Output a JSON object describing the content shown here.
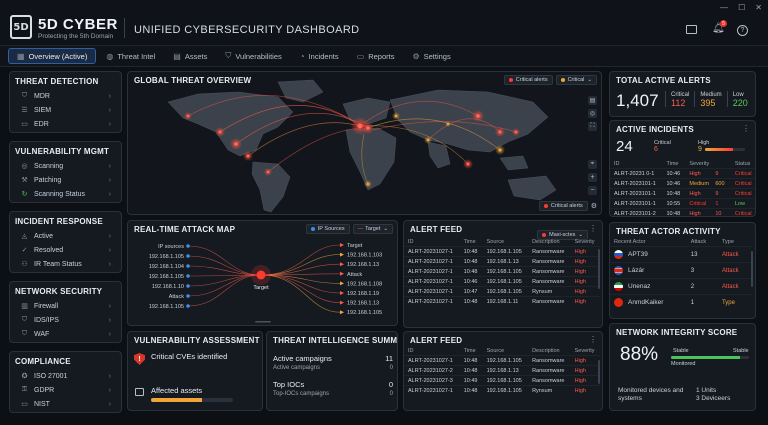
{
  "brand": {
    "name": "5D CYBER",
    "tagline": "Protecting the 5th Domain",
    "logo_letters": "5D"
  },
  "app_title": "UNIFIED CYBERSECURITY DASHBOARD",
  "window": {
    "notification_count": "5"
  },
  "tabs": [
    {
      "label": "Overview (Active)",
      "icon": "grid-icon",
      "active": true
    },
    {
      "label": "Threat Intel",
      "icon": "globe-icon"
    },
    {
      "label": "Assets",
      "icon": "server-icon"
    },
    {
      "label": "Vulnerabilities",
      "icon": "shield-icon"
    },
    {
      "label": "Incidents",
      "icon": "bell-icon"
    },
    {
      "label": "Reports",
      "icon": "document-icon"
    },
    {
      "label": "Settings",
      "icon": "gear-icon"
    }
  ],
  "sidebar": [
    {
      "title": "THREAT DETECTION",
      "items": [
        {
          "label": "MDR",
          "icon": "shield-icon"
        },
        {
          "label": "SIEM",
          "icon": "database-icon"
        },
        {
          "label": "EDR",
          "icon": "monitor-icon"
        }
      ]
    },
    {
      "title": "VULNERABILITY MGMT",
      "items": [
        {
          "label": "Scanning",
          "icon": "radar-icon"
        },
        {
          "label": "Patching",
          "icon": "wrench-icon"
        },
        {
          "label": "Scanning Status",
          "icon": "refresh-icon"
        }
      ]
    },
    {
      "title": "INCIDENT RESPONSE",
      "items": [
        {
          "label": "Active",
          "icon": "alert-icon"
        },
        {
          "label": "Resolved",
          "icon": "check-icon"
        },
        {
          "label": "IR Team Status",
          "icon": "team-icon"
        }
      ]
    },
    {
      "title": "NETWORK SECURITY",
      "items": [
        {
          "label": "Firewall",
          "icon": "firewall-icon"
        },
        {
          "label": "IDS/IPS",
          "icon": "shield-icon"
        },
        {
          "label": "WAF",
          "icon": "shield-icon"
        }
      ]
    },
    {
      "title": "COMPLIANCE",
      "items": [
        {
          "label": "ISO 27001",
          "icon": "badge-icon"
        },
        {
          "label": "GDPR",
          "icon": "lock-icon"
        },
        {
          "label": "NIST",
          "icon": "document-icon"
        }
      ]
    }
  ],
  "global_map": {
    "title": "GLOBAL THREAT OVERVIEW",
    "legend": [
      {
        "label": "Critical alerts",
        "color": "#ff3b30"
      },
      {
        "label": "Critical",
        "color": "#f0a53a"
      }
    ],
    "bottom_legend": "Critical alerts"
  },
  "total_alerts": {
    "title": "TOTAL ACTIVE ALERTS",
    "total": "1,407",
    "breakdown": [
      {
        "label": "Critical",
        "value": "112",
        "color": "#ff5a4a"
      },
      {
        "label": "Medium",
        "value": "395",
        "color": "#f0a53a"
      },
      {
        "label": "Low",
        "value": "220",
        "color": "#5ac85a"
      }
    ]
  },
  "active_incidents": {
    "title": "ACTIVE INCIDENTS",
    "count": "24",
    "critical_label": "Critical",
    "critical_value": "6",
    "high_label": "High",
    "high_value": "9",
    "high_level": 0.7,
    "columns": [
      "ID",
      "Time",
      "Severity",
      "Status"
    ],
    "rows": [
      {
        "id": "ALRT-20231 0-1",
        "time": "10:46",
        "severity": "High",
        "sev_num": "9",
        "status": "Critical"
      },
      {
        "id": "ALRT-2023101-1",
        "time": "10:46",
        "severity": "Medium",
        "sev_num": "600",
        "status": "Critical"
      },
      {
        "id": "ALRT-2023101-1",
        "time": "10:48",
        "severity": "High",
        "sev_num": "9",
        "status": "Critical"
      },
      {
        "id": "ALRT-2023101-1",
        "time": "10:55",
        "severity": "Critical",
        "sev_num": "1",
        "status": "Low"
      },
      {
        "id": "ALRT-2023101-2",
        "time": "10:48",
        "severity": "High",
        "sev_num": "10",
        "status": "Critical"
      }
    ]
  },
  "attack_map": {
    "title": "REAL-TIME ATTACK MAP",
    "legend_sources": "IP Sources",
    "legend_target": "Target",
    "center_label": "Target",
    "sources": [
      "IP sources",
      "192.168.1.105",
      "192.168.1.104",
      "192.168.1.105",
      "192.168.1.10",
      "Attack",
      "192.168.1.105"
    ],
    "targets": [
      "Target",
      "192.168.1.103",
      "192.168.1.13",
      "Attack",
      "192.168.1.108",
      "192.168.1.19",
      "192.168.1.13",
      "192.168.1.105"
    ]
  },
  "alert_feed_1": {
    "title": "ALERT FEED",
    "filter": "Maxi-sctes",
    "columns": [
      "ID",
      "Time",
      "Source",
      "Description",
      "Severity"
    ],
    "rows": [
      {
        "id": "ALRT-20231027-1",
        "time": "10:48",
        "source": "192.168.1.105",
        "desc": "Ransomware",
        "sev": "High"
      },
      {
        "id": "ALRT-20231027-1",
        "time": "10:48",
        "source": "192.168.1.13",
        "desc": "Ransomware",
        "sev": "High"
      },
      {
        "id": "ALRT-20231027-1",
        "time": "10:48",
        "source": "192.168.1.105",
        "desc": "Ransomware",
        "sev": "High"
      },
      {
        "id": "ALRT-20231027-1",
        "time": "10:46",
        "source": "192.168.1.105",
        "desc": "Ransomware",
        "sev": "High"
      },
      {
        "id": "ALRT-20231027-1",
        "time": "10:47",
        "source": "192.168.1.105",
        "desc": "Rynsum",
        "sev": "High"
      },
      {
        "id": "ALRT-20231027-1",
        "time": "10:48",
        "source": "192.168.1.11",
        "desc": "Ransomware",
        "sev": "High"
      }
    ]
  },
  "alert_feed_2": {
    "title": "ALERT FEED",
    "columns": [
      "ID",
      "Time",
      "Source",
      "Description",
      "Severity"
    ],
    "rows": [
      {
        "id": "ALRT-20231027-1",
        "time": "10:48",
        "source": "192.168.1.105",
        "desc": "Ransomware",
        "sev": "High"
      },
      {
        "id": "ALRT-20231027-2",
        "time": "10:48",
        "source": "192.168.1.13",
        "desc": "Ransomware",
        "sev": "High"
      },
      {
        "id": "ALRT-20231027-3",
        "time": "10:49",
        "source": "192.168.1.105",
        "desc": "Ransomware",
        "sev": "High"
      },
      {
        "id": "ALRT-20231027-1",
        "time": "10:48",
        "source": "192.168.1.105",
        "desc": "Rynsum",
        "sev": "High"
      }
    ]
  },
  "threat_actors": {
    "title": "THREAT ACTOR ACTIVITY",
    "columns": [
      "Recent Actor",
      "Attack",
      "Type"
    ],
    "rows": [
      {
        "name": "APT39",
        "count": "13",
        "type": "Attack",
        "type_color": "#ff5a4a",
        "flag": "ru"
      },
      {
        "name": "Lázár",
        "count": "3",
        "type": "Attack",
        "type_color": "#ff5a4a",
        "flag": "kp"
      },
      {
        "name": "Unenaz",
        "count": "2",
        "type": "Attack",
        "type_color": "#ff5a4a",
        "flag": "ir"
      },
      {
        "name": "AnmdKaiker",
        "count": "1",
        "type": "Type",
        "type_color": "#f0a53a",
        "flag": "cn"
      }
    ]
  },
  "vuln_assessment": {
    "title": "VULNERABILITY ASSESSMENT",
    "cves_label": "Critical CVEs identified",
    "assets_label": "Affected assets",
    "assets_level": 0.62
  },
  "threat_intel": {
    "title": "THREAT INTELLIGENCE SUMMARY",
    "rows": [
      {
        "label": "Active campaigns",
        "value": "11",
        "big": true
      },
      {
        "label": "Active campaigns",
        "value": "0",
        "big": false
      },
      {
        "label": "Top IOCs",
        "value": "0",
        "big": true
      },
      {
        "label": "Top-IOCs campaigns",
        "value": "0",
        "big": false
      }
    ]
  },
  "network_integrity": {
    "title": "NETWORK INTEGRITY SCORE",
    "score": "88%",
    "level": 0.88,
    "stable_left": "Stable",
    "stable_right": "Stable",
    "monitored_label": "Monitored",
    "devices_label": "Monitored devices and systems",
    "units": "1 Units",
    "devices": "3 Deviceers"
  }
}
